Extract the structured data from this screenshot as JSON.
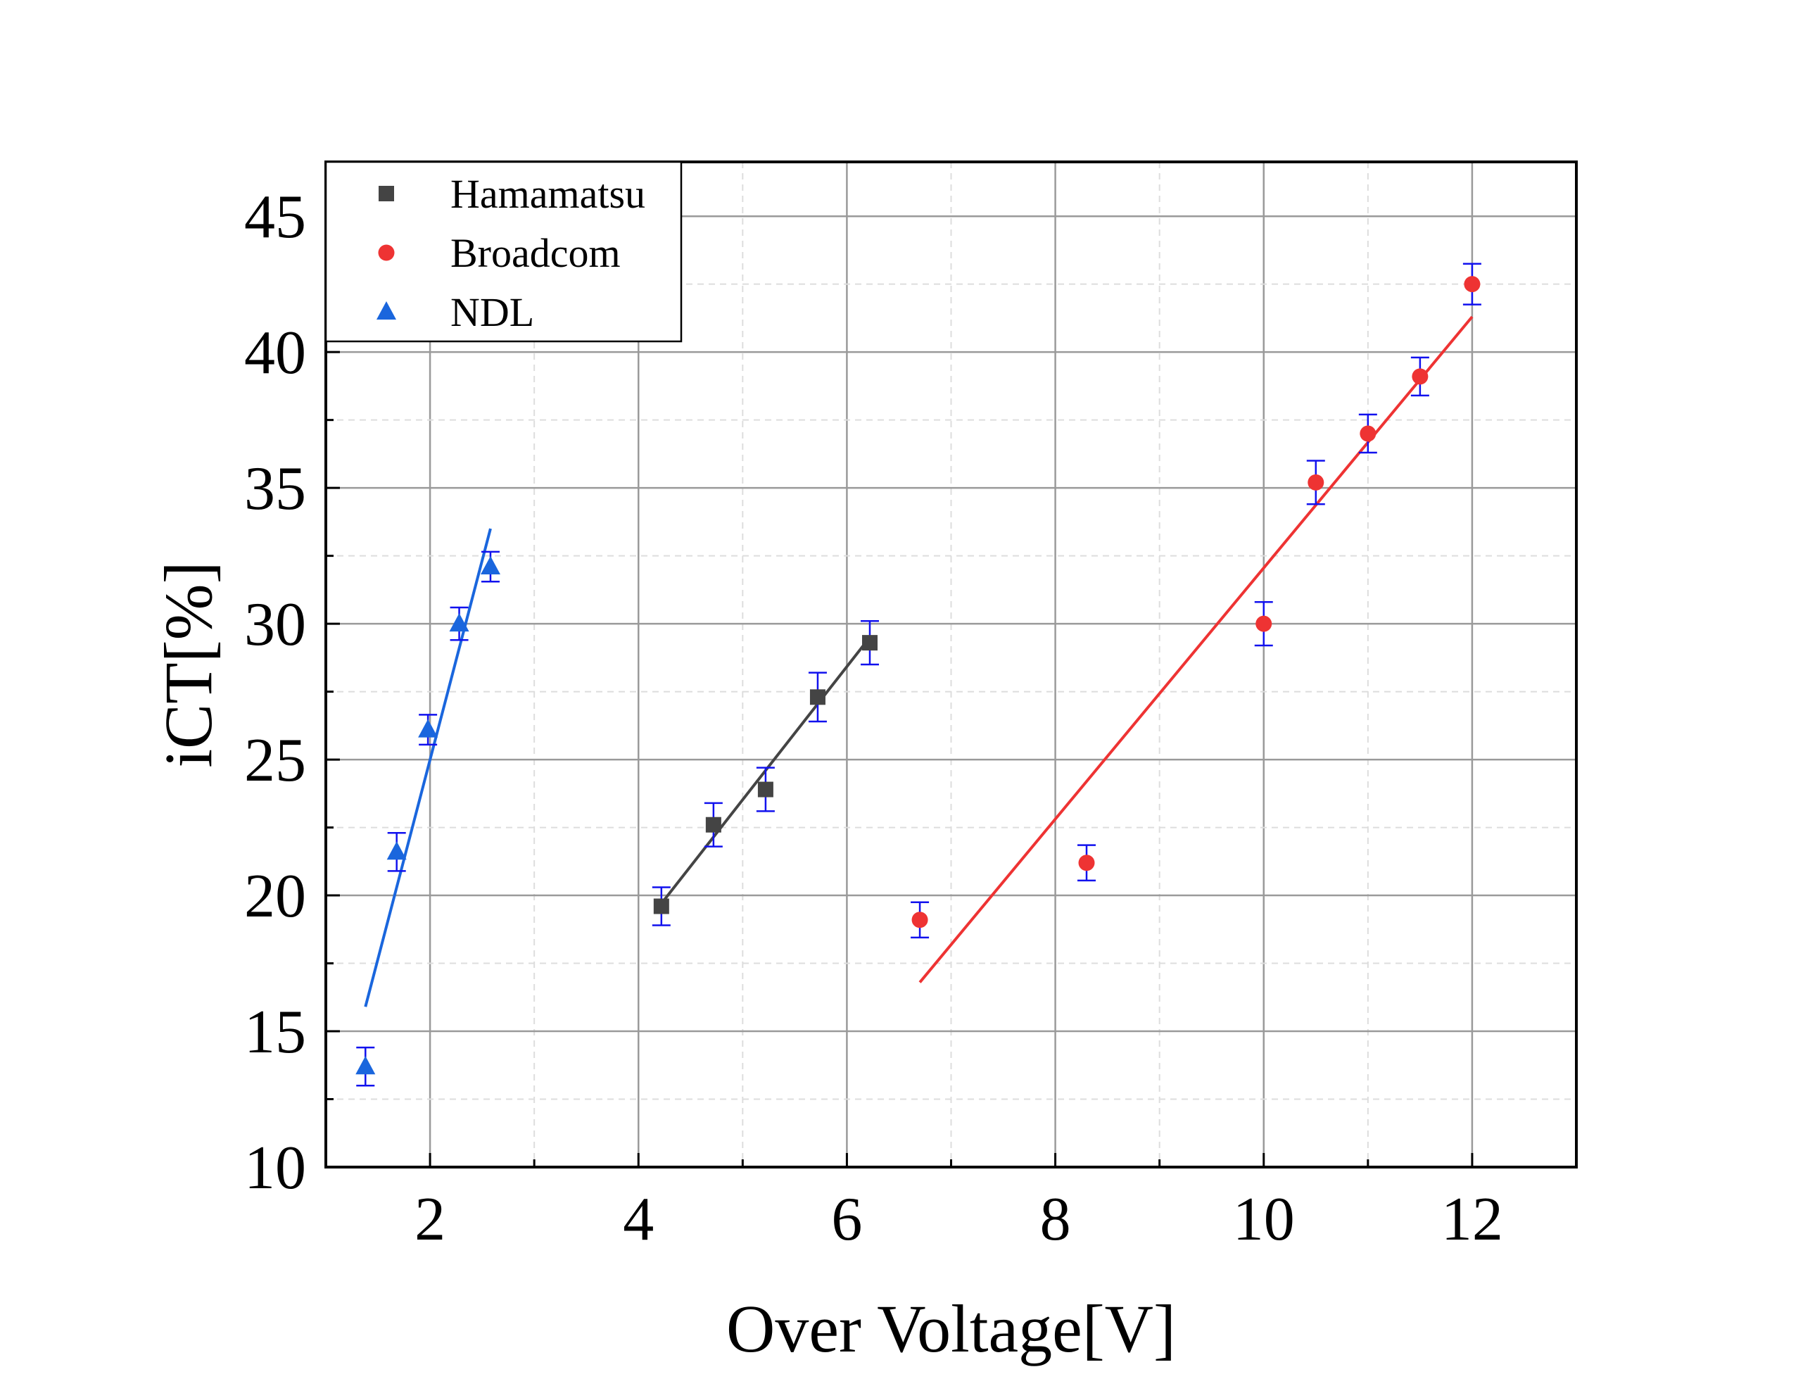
{
  "chart_data": {
    "type": "scatter",
    "title": "",
    "xlabel": "Over Voltage[V]",
    "ylabel": "iCT[%]",
    "xlim": [
      1,
      13
    ],
    "ylim": [
      10,
      47
    ],
    "x_ticks": [
      2,
      4,
      6,
      8,
      10,
      12
    ],
    "x_tick_labels": [
      "2",
      "4",
      "6",
      "8",
      "10",
      "12"
    ],
    "y_ticks": [
      10,
      15,
      20,
      25,
      30,
      35,
      40,
      45
    ],
    "y_tick_labels": [
      "10",
      "15",
      "20",
      "25",
      "30",
      "35",
      "40",
      "45"
    ],
    "grid": true,
    "legend_position": "top-left",
    "series": [
      {
        "name": "Hamamatsu",
        "marker": "square",
        "color": "#444444",
        "x": [
          4.22,
          4.72,
          5.22,
          5.72,
          6.22
        ],
        "y": [
          19.6,
          22.6,
          23.9,
          27.3,
          29.3
        ],
        "error": [
          0.7,
          0.8,
          0.8,
          0.9,
          0.8
        ],
        "fit": {
          "x": [
            4.22,
            6.22
          ],
          "y": [
            19.7,
            29.5
          ],
          "color": "#444444"
        }
      },
      {
        "name": "Broadcom",
        "marker": "circle",
        "color": "#ee3333",
        "x": [
          6.7,
          8.3,
          10.0,
          10.5,
          11.0,
          11.5,
          12.0
        ],
        "y": [
          19.1,
          21.2,
          30.0,
          35.2,
          37.0,
          39.1,
          42.5
        ],
        "error": [
          0.65,
          0.65,
          0.8,
          0.8,
          0.7,
          0.7,
          0.75
        ],
        "fit": {
          "x": [
            6.7,
            12.0
          ],
          "y": [
            16.8,
            41.3
          ],
          "color": "#ee3333"
        }
      },
      {
        "name": "NDL",
        "marker": "triangle",
        "color": "#1a66dd",
        "x": [
          1.38,
          1.68,
          1.98,
          2.28,
          2.58
        ],
        "y": [
          13.7,
          21.6,
          26.1,
          30.0,
          32.1
        ],
        "error": [
          0.7,
          0.7,
          0.55,
          0.6,
          0.55
        ],
        "fit": {
          "x": [
            1.38,
            2.58
          ],
          "y": [
            15.9,
            33.5
          ],
          "color": "#1a66dd"
        }
      }
    ],
    "error_bar_color": "#1111ee"
  }
}
